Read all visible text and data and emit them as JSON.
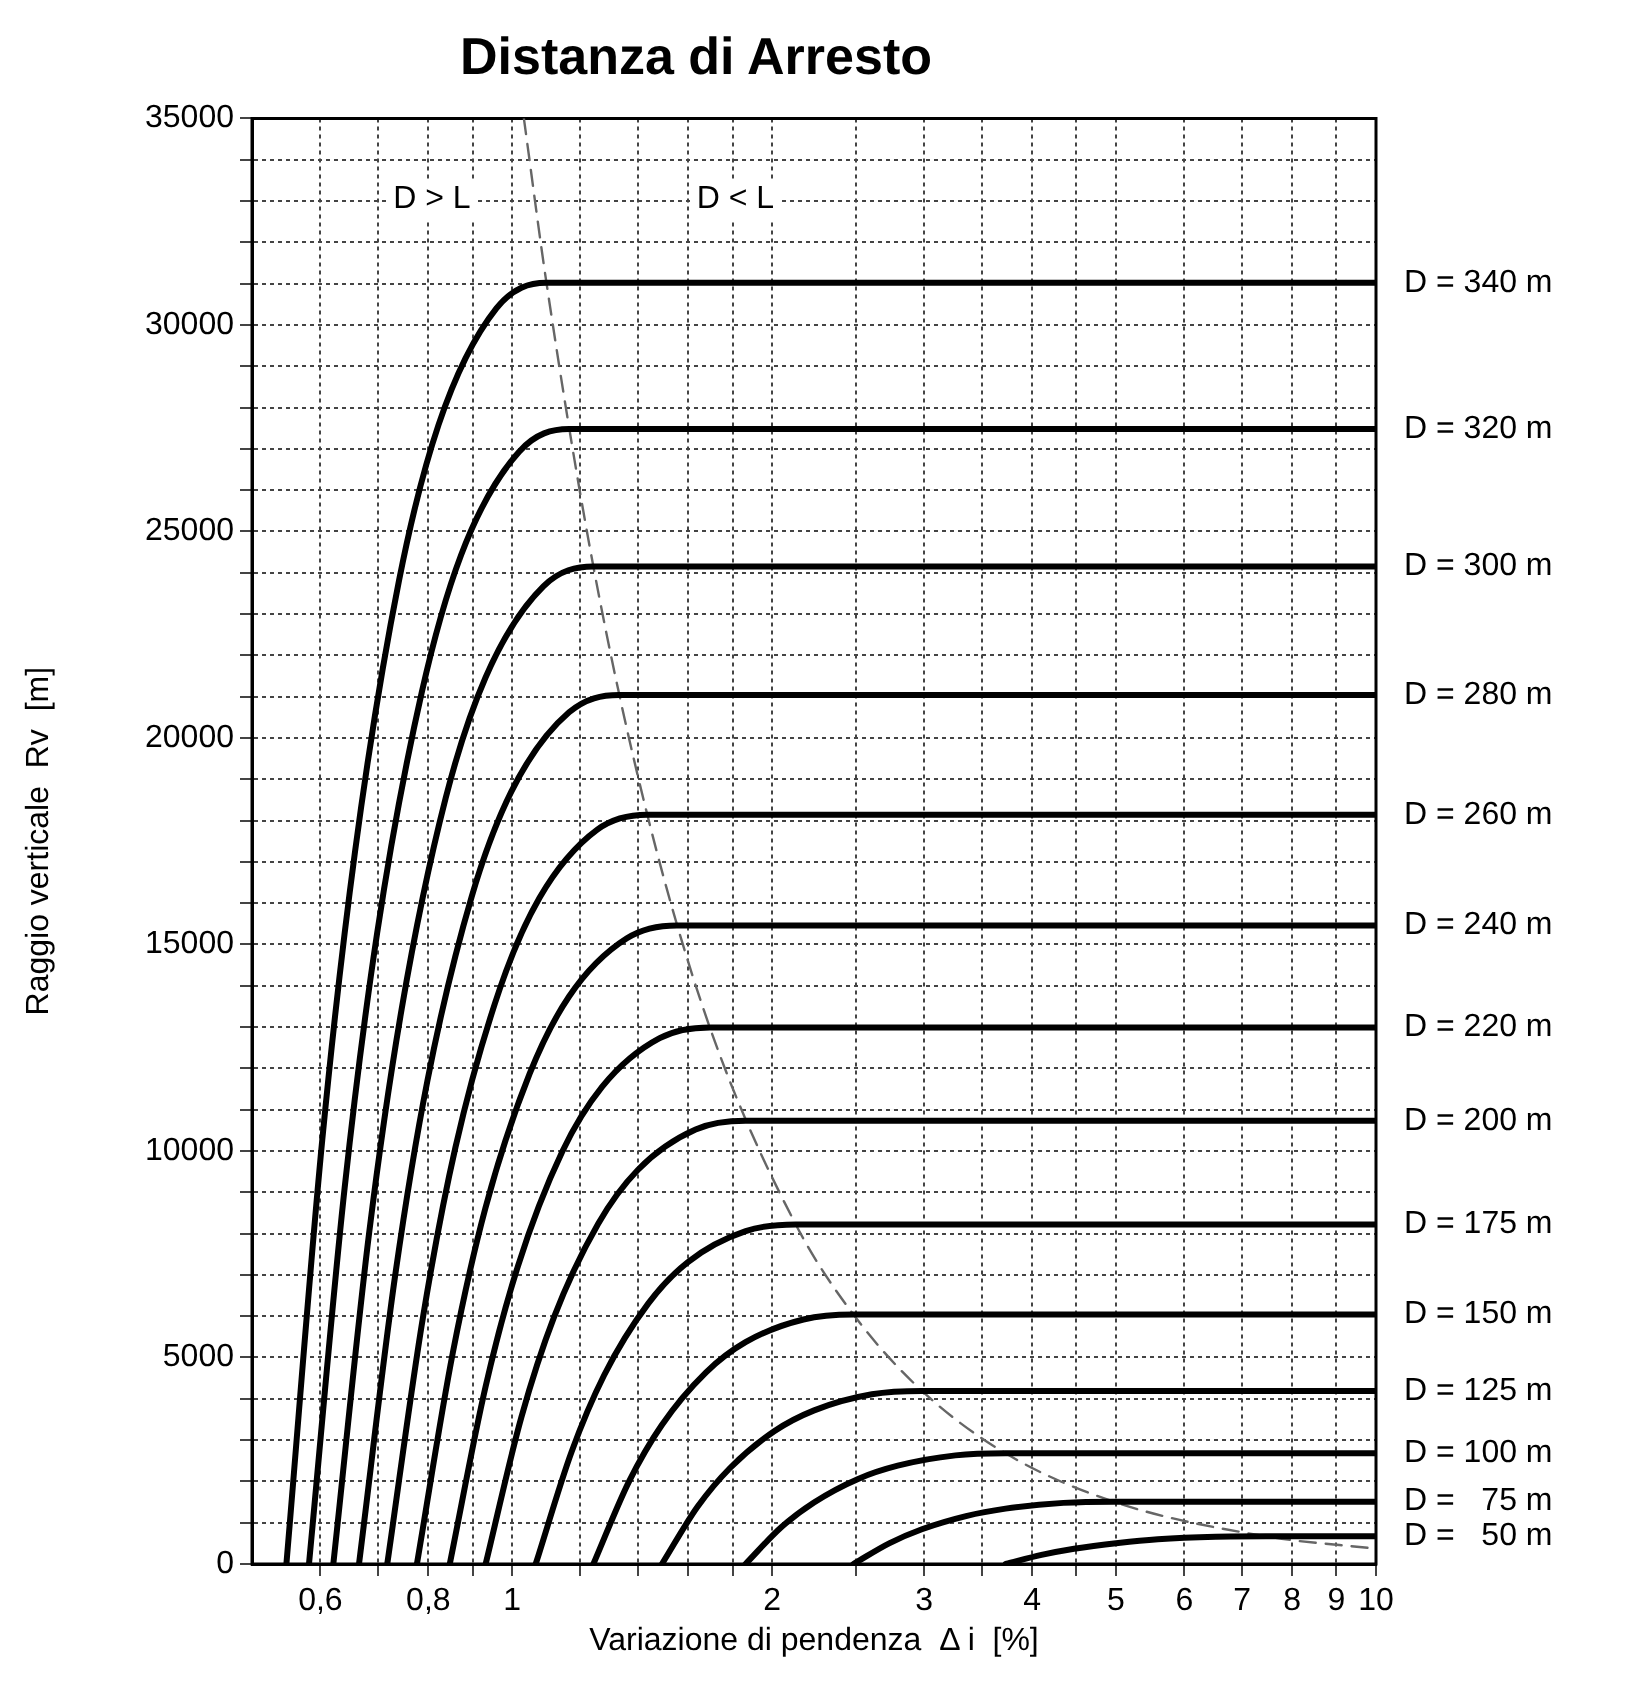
{
  "chart_data": {
    "type": "line",
    "title": "Distanza di Arresto",
    "xlabel": "Variazione di pendenza  Δ i  [%]",
    "ylabel": "Raggio verticale  Rv  [m]",
    "log": "x",
    "grid": true,
    "legend": false,
    "marker": "none",
    "line_style": "solid",
    "xlim": [
      0.5,
      10
    ],
    "xticks": [
      {
        "value": 0.6,
        "label": "0,6"
      },
      {
        "value": 0.7,
        "label": null
      },
      {
        "value": 0.8,
        "label": "0,8"
      },
      {
        "value": 0.9,
        "label": null
      },
      1,
      {
        "value": 1.2,
        "label": null
      },
      {
        "value": 1.4,
        "label": null
      },
      {
        "value": 1.6,
        "label": null
      },
      {
        "value": 1.8,
        "label": null
      },
      2,
      {
        "value": 2.5,
        "label": null
      },
      3,
      {
        "value": 3.5,
        "label": null
      },
      4,
      {
        "value": 4.5,
        "label": null
      },
      5,
      6,
      7,
      8,
      9,
      10
    ],
    "ylim": [
      0,
      35000
    ],
    "yticks": [
      0,
      {
        "value": 1000,
        "label": null
      },
      {
        "value": 2000,
        "label": null
      },
      {
        "value": 3000,
        "label": null
      },
      {
        "value": 4000,
        "label": null
      },
      5000,
      {
        "value": 6000,
        "label": null
      },
      {
        "value": 7000,
        "label": null
      },
      {
        "value": 8000,
        "label": null
      },
      {
        "value": 9000,
        "label": null
      },
      10000,
      {
        "value": 11000,
        "label": null
      },
      {
        "value": 12000,
        "label": null
      },
      {
        "value": 13000,
        "label": null
      },
      {
        "value": 14000,
        "label": null
      },
      15000,
      {
        "value": 16000,
        "label": null
      },
      {
        "value": 17000,
        "label": null
      },
      {
        "value": 18000,
        "label": null
      },
      {
        "value": 19000,
        "label": null
      },
      20000,
      {
        "value": 21000,
        "label": null
      },
      {
        "value": 22000,
        "label": null
      },
      {
        "value": 23000,
        "label": null
      },
      {
        "value": 24000,
        "label": null
      },
      25000,
      {
        "value": 26000,
        "label": null
      },
      {
        "value": 27000,
        "label": null
      },
      {
        "value": 28000,
        "label": null
      },
      {
        "value": 29000,
        "label": null
      },
      30000,
      {
        "value": 31000,
        "label": null
      },
      {
        "value": 32000,
        "label": null
      },
      {
        "value": 33000,
        "label": null
      },
      {
        "value": 34000,
        "label": null
      },
      35000
    ],
    "annotations": [
      "D > L",
      "D < L"
    ],
    "series": [
      {
        "name": "D = 340 m",
        "color": "#000000",
        "x": [
          0.548,
          0.603,
          0.658,
          0.74,
          0.822,
          0.959,
          1.096,
          10
        ],
        "values": [
          0,
          10270,
          17250,
          23820,
          27580,
          30400,
          31020,
          31020
        ]
      },
      {
        "name": "D = 320 m",
        "color": "#000000",
        "x": [
          0.582,
          0.64,
          0.698,
          0.786,
          0.873,
          1.019,
          1.164,
          10
        ],
        "values": [
          0,
          9100,
          15280,
          21100,
          24430,
          26930,
          27480,
          27480
        ]
      },
      {
        "name": "D = 300 m",
        "color": "#000000",
        "x": [
          0.621,
          0.683,
          0.745,
          0.838,
          0.932,
          1.087,
          1.242,
          10
        ],
        "values": [
          0,
          7990,
          13430,
          18550,
          21470,
          23670,
          24150,
          24150
        ]
      },
      {
        "name": "D = 280 m",
        "color": "#000000",
        "x": [
          0.665,
          0.732,
          0.798,
          0.898,
          0.998,
          1.164,
          1.33,
          10
        ],
        "values": [
          0,
          6960,
          11700,
          16160,
          18700,
          20620,
          21040,
          21040
        ]
      },
      {
        "name": "D = 260 m",
        "color": "#000000",
        "x": [
          0.717,
          0.789,
          0.86,
          0.968,
          1.076,
          1.255,
          1.434,
          10
        ],
        "values": [
          0,
          6000,
          10090,
          13930,
          16130,
          17780,
          18140,
          18140
        ]
      },
      {
        "name": "D = 240 m",
        "color": "#000000",
        "x": [
          0.776,
          0.854,
          0.931,
          1.048,
          1.164,
          1.358,
          1.552,
          10
        ],
        "values": [
          0,
          5120,
          8600,
          11870,
          13740,
          15150,
          15460,
          15460
        ]
      },
      {
        "name": "D = 220 m",
        "color": "#000000",
        "x": [
          0.847,
          0.932,
          1.016,
          1.143,
          1.271,
          1.482,
          1.694,
          10
        ],
        "values": [
          0,
          4300,
          7220,
          9980,
          11550,
          12730,
          12990,
          12990
        ]
      },
      {
        "name": "D = 200 m",
        "color": "#000000",
        "x": [
          0.932,
          1.025,
          1.118,
          1.258,
          1.398,
          1.631,
          1.864,
          10
        ],
        "values": [
          0,
          3550,
          5970,
          8240,
          9540,
          10520,
          10730,
          10730
        ]
      },
      {
        "name": "D = 175 m",
        "color": "#000000",
        "x": [
          1.065,
          1.172,
          1.278,
          1.438,
          1.598,
          1.864,
          2.13,
          10
        ],
        "values": [
          0,
          2720,
          4570,
          6310,
          7310,
          8060,
          8220,
          8220
        ]
      },
      {
        "name": "D = 150 m",
        "color": "#000000",
        "x": [
          1.242,
          1.366,
          1.49,
          1.677,
          1.863,
          2.174,
          2.484,
          10
        ],
        "values": [
          0,
          2000,
          3360,
          4640,
          5370,
          5920,
          6040,
          6040
        ]
      },
      {
        "name": "D = 125 m",
        "color": "#000000",
        "x": [
          1.491,
          1.64,
          1.789,
          2.013,
          2.237,
          2.609,
          2.982,
          10
        ],
        "values": [
          0,
          1390,
          2330,
          3220,
          3720,
          4110,
          4190,
          4190
        ]
      },
      {
        "name": "D = 100 m",
        "color": "#000000",
        "x": [
          1.863,
          2.049,
          2.236,
          2.515,
          2.795,
          3.26,
          3.726,
          10
        ],
        "values": [
          0,
          890,
          1490,
          2060,
          2380,
          2630,
          2680,
          2680
        ]
      },
      {
        "name": "D =   75 m",
        "color": "#000000",
        "x": [
          2.484,
          2.732,
          2.981,
          3.353,
          3.726,
          4.347,
          4.968,
          10
        ],
        "values": [
          0,
          500,
          840,
          1160,
          1340,
          1480,
          1510,
          1510
        ]
      },
      {
        "name": "D =   50 m",
        "color": "#000000",
        "x": [
          3.727,
          4.1,
          4.472,
          5.031,
          5.591,
          6.522,
          7.454,
          10
        ],
        "values": [
          0,
          220,
          370,
          510,
          600,
          660,
          670,
          670
        ]
      },
      {
        "color": "#666666",
        "line_style": "dashed",
        "x": [
          1.032,
          1.096,
          1.242,
          1.434,
          1.694,
          2.13,
          2.484,
          2.982,
          3.726,
          4.968,
          7.454,
          10
        ],
        "values": [
          35000,
          31020,
          24150,
          18140,
          12990,
          8220,
          6040,
          4190,
          2680,
          1510,
          670,
          370
        ]
      }
    ]
  }
}
